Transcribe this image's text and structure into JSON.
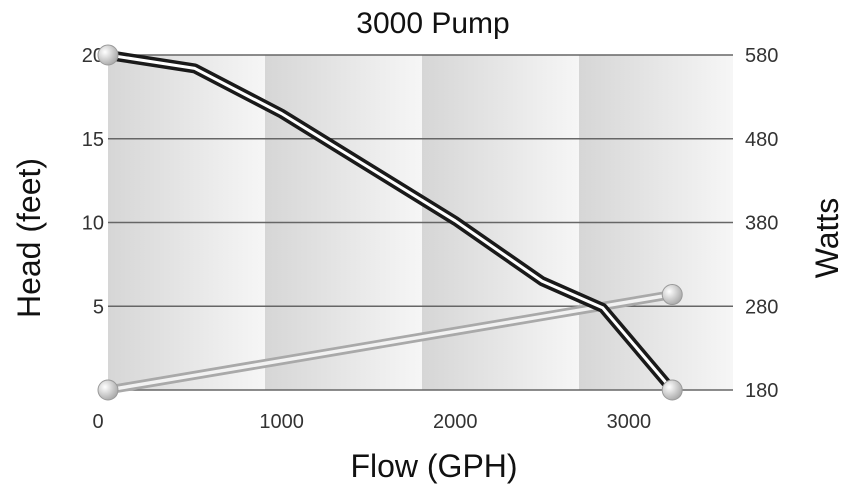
{
  "chart_data": {
    "type": "line",
    "title": "3000 Pump",
    "xlabel": "Flow (GPH)",
    "ylabel": "Head (feet)",
    "y2label": "Watts",
    "xlim": [
      0,
      3600
    ],
    "ylim": [
      0,
      20
    ],
    "y2lim": [
      180,
      580
    ],
    "x_tick_labels": [
      "0",
      "1000",
      "2000",
      "3000"
    ],
    "y_tick_labels": [
      "20",
      "15",
      "10",
      "5"
    ],
    "y2_tick_labels": [
      "580",
      "480",
      "380",
      "280",
      "180"
    ],
    "grid": "horizontal",
    "series": [
      {
        "axis": "left",
        "color": "#1a1a1a",
        "x": [
          0,
          500,
          1000,
          1500,
          2000,
          2500,
          2850,
          3250
        ],
        "y": [
          20,
          19.2,
          16.5,
          13.3,
          10.1,
          6.5,
          4.9,
          0
        ]
      },
      {
        "axis": "right",
        "color": "#bdbdbd",
        "x": [
          0,
          3250
        ],
        "y": [
          180,
          294
        ]
      }
    ]
  }
}
